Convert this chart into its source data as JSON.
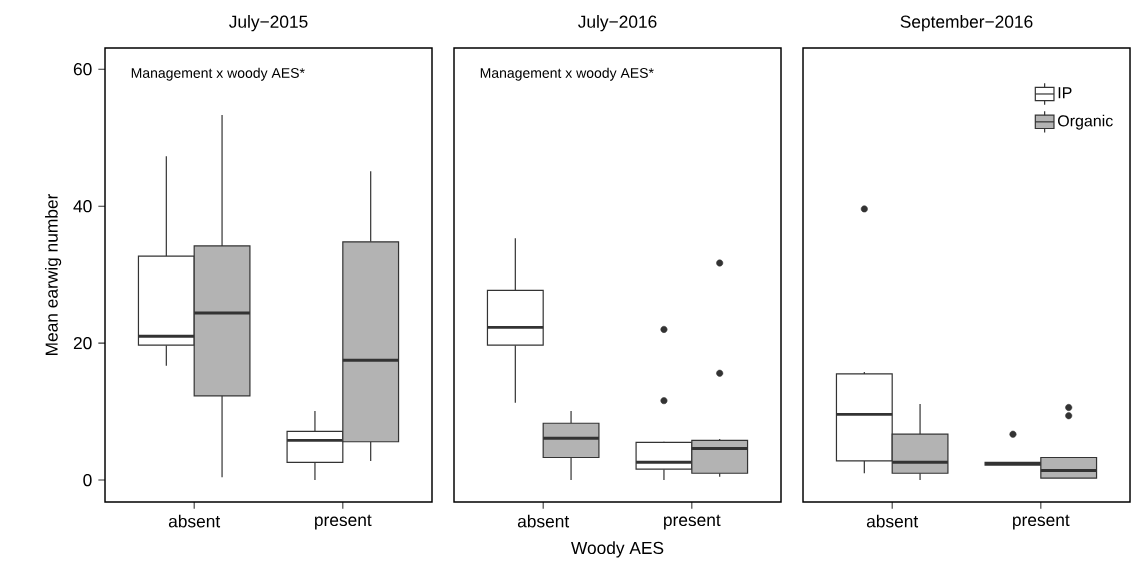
{
  "chart_data": [
    {
      "type": "box",
      "title": "July−2015",
      "ylabel": "Mean earwig number",
      "annotations": [
        "Management x woody AES*"
      ],
      "categories": [
        "absent",
        "present"
      ],
      "ylim": [
        -3.2,
        63.1
      ],
      "yticks": [
        0,
        20,
        40,
        60
      ],
      "series": [
        {
          "color": "#ffffff",
          "boxes": [
            {
              "low": 16.7,
              "q1": 19.7,
              "median": 21.0,
              "q3": 32.7,
              "high": 47.3
            },
            {
              "low": 0,
              "q1": 2.6,
              "median": 5.8,
              "q3": 7.1,
              "high": 10.1
            }
          ]
        },
        {
          "color": "#b3b3b3",
          "boxes": [
            {
              "low": 0.4,
              "q1": 12.3,
              "median": 24.4,
              "q3": 34.2,
              "high": 53.3
            },
            {
              "low": 2.8,
              "q1": 5.6,
              "median": 17.5,
              "q3": 34.8,
              "high": 45.1
            }
          ]
        }
      ]
    },
    {
      "type": "box",
      "title": "July−2016",
      "xlabel": "Woody AES",
      "annotations": [
        "Management x woody AES*"
      ],
      "categories": [
        "absent",
        "present"
      ],
      "ylim": [
        -3.2,
        63.1
      ],
      "yticks": [
        0,
        20,
        40,
        60
      ],
      "tick_labels": "x",
      "series": [
        {
          "color": "#ffffff",
          "boxes": [
            {
              "low": 11.3,
              "q1": 19.7,
              "median": 22.3,
              "q3": 27.7,
              "high": 35.3
            },
            {
              "low": 0,
              "q1": 1.6,
              "median": 2.6,
              "q3": 5.5,
              "high": 5.6,
              "outliers": [
                22.0,
                11.6
              ]
            }
          ]
        },
        {
          "color": "#b3b3b3",
          "boxes": [
            {
              "low": 0,
              "q1": 3.3,
              "median": 6.1,
              "q3": 8.3,
              "high": 10.1
            },
            {
              "low": 0.5,
              "q1": 1.0,
              "median": 4.6,
              "q3": 5.8,
              "high": 6.0,
              "outliers": [
                31.7,
                15.6
              ]
            }
          ]
        }
      ]
    },
    {
      "type": "box",
      "title": "September−2016",
      "categories": [
        "absent",
        "present"
      ],
      "ylim": [
        -3.2,
        63.1
      ],
      "yticks": [
        0,
        20,
        40,
        60
      ],
      "tick_labels": "x",
      "legend": "top right",
      "series": [
        {
          "name": "IP",
          "color": "#ffffff",
          "boxes": [
            {
              "low": 1.0,
              "q1": 2.8,
              "median": 9.6,
              "q3": 15.5,
              "high": 15.8,
              "outliers": [
                39.6
              ]
            },
            {
              "low": 2.2,
              "q1": 2.2,
              "median": 2.4,
              "q3": 2.6,
              "high": 2.6,
              "outliers": [
                6.7
              ]
            }
          ]
        },
        {
          "name": "Organic",
          "color": "#b3b3b3",
          "boxes": [
            {
              "low": 0,
              "q1": 1.0,
              "median": 2.6,
              "q3": 6.7,
              "high": 11.1
            },
            {
              "low": 0.3,
              "q1": 0.3,
              "median": 1.4,
              "q3": 3.3,
              "high": 3.3,
              "outliers": [
                10.6,
                9.4
              ]
            }
          ]
        }
      ]
    }
  ]
}
